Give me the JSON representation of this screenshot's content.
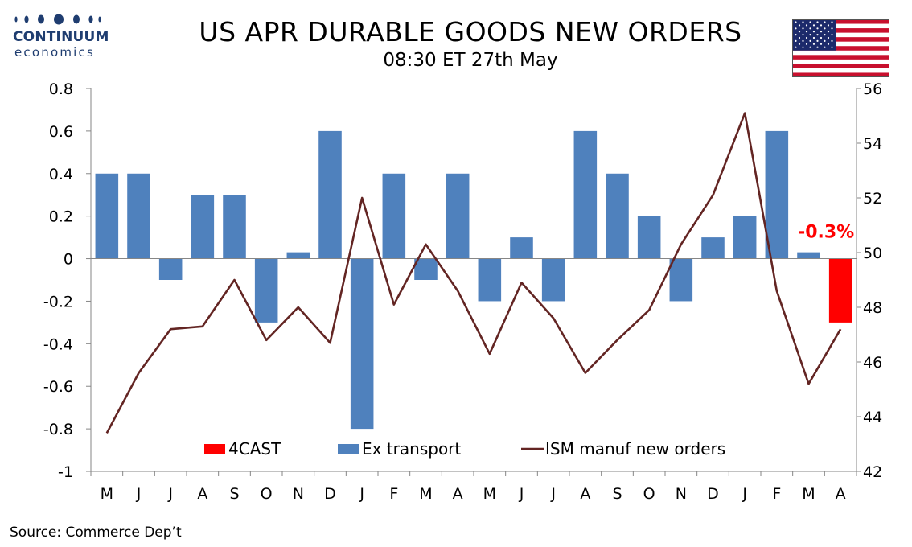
{
  "logo": {
    "brand": "CONTINUUM",
    "sub": "economics"
  },
  "header": {
    "title": "US APR DURABLE GOODS NEW ORDERS",
    "subtitle": "08:30 ET 27th May"
  },
  "flag_icon": "us-flag-icon",
  "source": "Source: Commerce Dep’t",
  "colors": {
    "bar": "#4f81bd",
    "forecast": "#ff0000",
    "line": "#632523",
    "axis": "#868686",
    "logo": "#1f3d70"
  },
  "chart_data": {
    "type": "bar",
    "categories": [
      "M",
      "J",
      "J",
      "A",
      "S",
      "O",
      "N",
      "D",
      "J",
      "F",
      "M",
      "A",
      "M",
      "J",
      "J",
      "A",
      "S",
      "O",
      "N",
      "D",
      "J",
      "F",
      "M",
      "A"
    ],
    "series": [
      {
        "name": "4CAST",
        "type": "bar",
        "color": "#ff0000",
        "axis": "left",
        "values": [
          null,
          null,
          null,
          null,
          null,
          null,
          null,
          null,
          null,
          null,
          null,
          null,
          null,
          null,
          null,
          null,
          null,
          null,
          null,
          null,
          null,
          null,
          null,
          -0.3
        ]
      },
      {
        "name": "Ex transport",
        "type": "bar",
        "color": "#4f81bd",
        "axis": "left",
        "values": [
          0.4,
          0.4,
          -0.1,
          0.3,
          0.3,
          -0.3,
          0.03,
          0.6,
          -0.8,
          0.4,
          -0.1,
          0.4,
          -0.2,
          0.1,
          -0.2,
          0.6,
          0.4,
          0.2,
          -0.2,
          0.1,
          0.2,
          0.6,
          0.03,
          null
        ]
      },
      {
        "name": "ISM manuf new orders",
        "type": "line",
        "color": "#632523",
        "axis": "right",
        "values": [
          43.4,
          45.6,
          47.2,
          47.3,
          49.0,
          46.8,
          48.0,
          46.7,
          52.0,
          48.1,
          50.3,
          48.6,
          46.3,
          48.9,
          47.6,
          45.6,
          46.8,
          47.9,
          50.3,
          52.1,
          55.1,
          48.6,
          45.2,
          47.2
        ]
      }
    ],
    "annotation": "-0.3%",
    "yleft": {
      "min": -1,
      "max": 0.8,
      "ticks": [
        "0.8",
        "0.6",
        "0.4",
        "0.2",
        "0",
        "-0.2",
        "-0.4",
        "-0.6",
        "-0.8",
        "-1"
      ]
    },
    "yright": {
      "min": 42,
      "max": 56,
      "ticks": [
        "56",
        "54",
        "52",
        "50",
        "48",
        "46",
        "44",
        "42"
      ]
    },
    "legend_position": "bottom-center",
    "grid": false
  }
}
